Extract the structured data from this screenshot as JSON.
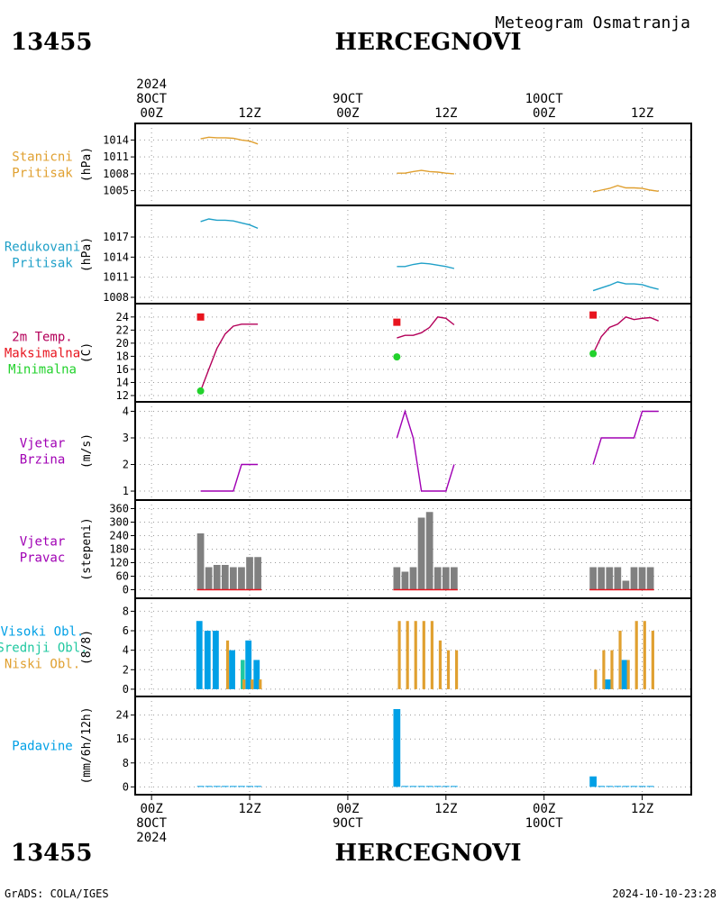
{
  "header": {
    "station_id": "13455",
    "station_name": "HERCEGNOVI",
    "product": "Meteogram Osmatranja"
  },
  "footer": {
    "credit": "GrADS: COLA/IGES",
    "timestamp": "2024-10-10-23:28"
  },
  "colors": {
    "orange": "#e0a030",
    "cyan": "#1fa0c8",
    "red": "#e8141e",
    "green": "#22d22c",
    "magenta": "#b4005a",
    "purple": "#a000b4",
    "gray": "#808080",
    "blue": "#00a0e6",
    "teal": "#20c8a0"
  },
  "time_axis": {
    "top_labels": [
      {
        "t": 0,
        "lines": [
          "2024",
          "8OCT",
          "00Z"
        ]
      },
      {
        "t": 12,
        "lines": [
          "12Z"
        ]
      },
      {
        "t": 24,
        "lines": [
          "9OCT",
          "00Z"
        ]
      },
      {
        "t": 36,
        "lines": [
          "12Z"
        ]
      },
      {
        "t": 48,
        "lines": [
          "10OCT",
          "00Z"
        ]
      },
      {
        "t": 60,
        "lines": [
          "12Z"
        ]
      }
    ],
    "bottom_labels": [
      {
        "t": 0,
        "lines": [
          "00Z",
          "8OCT",
          "2024"
        ]
      },
      {
        "t": 12,
        "lines": [
          "12Z"
        ]
      },
      {
        "t": 24,
        "lines": [
          "00Z",
          "9OCT"
        ]
      },
      {
        "t": 36,
        "lines": [
          "12Z"
        ]
      },
      {
        "t": 48,
        "lines": [
          "00Z",
          "10OCT"
        ]
      },
      {
        "t": 60,
        "lines": [
          "12Z"
        ]
      }
    ]
  },
  "chart_data": [
    {
      "type": "line",
      "panel": "station-pressure",
      "labels": [
        "Stanicni",
        "Pritisak"
      ],
      "label_colors": [
        "orange",
        "orange"
      ],
      "unit": "(hPa)",
      "ylim": [
        1003.5,
        1015.5
      ],
      "yticks": [
        1005,
        1008,
        1011,
        1014
      ],
      "grid": true,
      "series": [
        {
          "color": "orange",
          "segments": [
            [
              [
                6,
                1014.2
              ],
              [
                7,
                1014.5
              ],
              [
                8,
                1014.4
              ],
              [
                9,
                1014.4
              ],
              [
                10,
                1014.3
              ],
              [
                11,
                1014.0
              ],
              [
                12,
                1013.8
              ],
              [
                13,
                1013.3
              ]
            ],
            [
              [
                30,
                1008.1
              ],
              [
                31,
                1008.1
              ],
              [
                32,
                1008.4
              ],
              [
                33,
                1008.6
              ],
              [
                34,
                1008.4
              ],
              [
                35,
                1008.3
              ],
              [
                36,
                1008.1
              ],
              [
                37,
                1008.0
              ]
            ],
            [
              [
                54,
                1004.8
              ],
              [
                55,
                1005.1
              ],
              [
                56,
                1005.4
              ],
              [
                57,
                1005.9
              ],
              [
                58,
                1005.5
              ],
              [
                59,
                1005.5
              ],
              [
                60,
                1005.4
              ],
              [
                61,
                1005.1
              ],
              [
                62,
                1004.9
              ]
            ]
          ]
        }
      ]
    },
    {
      "type": "line",
      "panel": "reduced-pressure",
      "labels": [
        "Redukovani",
        "Pritisak"
      ],
      "label_colors": [
        "cyan",
        "cyan"
      ],
      "unit": "(hPa)",
      "ylim": [
        1008,
        1020.5
      ],
      "yticks": [
        1008,
        1011,
        1014,
        1017
      ],
      "grid": true,
      "series": [
        {
          "color": "cyan",
          "segments": [
            [
              [
                6,
                1019.3
              ],
              [
                7,
                1019.7
              ],
              [
                8,
                1019.5
              ],
              [
                9,
                1019.5
              ],
              [
                10,
                1019.4
              ],
              [
                11,
                1019.1
              ],
              [
                12,
                1018.8
              ],
              [
                13,
                1018.3
              ]
            ],
            [
              [
                30,
                1012.6
              ],
              [
                31,
                1012.6
              ],
              [
                32,
                1012.9
              ],
              [
                33,
                1013.1
              ],
              [
                34,
                1013.0
              ],
              [
                35,
                1012.8
              ],
              [
                36,
                1012.6
              ],
              [
                37,
                1012.3
              ]
            ],
            [
              [
                54,
                1009.0
              ],
              [
                55,
                1009.4
              ],
              [
                56,
                1009.8
              ],
              [
                57,
                1010.3
              ],
              [
                58,
                1010.0
              ],
              [
                59,
                1010.0
              ],
              [
                60,
                1009.9
              ],
              [
                61,
                1009.5
              ],
              [
                62,
                1009.2
              ]
            ]
          ]
        }
      ]
    },
    {
      "type": "line",
      "panel": "temperature",
      "labels": [
        "2m Temp.",
        "Maksimalna",
        "Minimalna"
      ],
      "label_colors": [
        "magenta",
        "red",
        "green"
      ],
      "unit": "(C)",
      "ylim": [
        12,
        24.8
      ],
      "yticks": [
        12,
        14,
        16,
        18,
        20,
        22,
        24
      ],
      "grid": true,
      "series": [
        {
          "color": "magenta",
          "segments": [
            [
              [
                6,
                12.7
              ],
              [
                7,
                16.0
              ],
              [
                8,
                19.2
              ],
              [
                9,
                21.4
              ],
              [
                10,
                22.6
              ],
              [
                11,
                22.9
              ],
              [
                12,
                22.9
              ],
              [
                13,
                22.9
              ]
            ],
            [
              [
                30,
                20.8
              ],
              [
                31,
                21.2
              ],
              [
                32,
                21.2
              ],
              [
                33,
                21.6
              ],
              [
                34,
                22.4
              ],
              [
                35,
                24.0
              ],
              [
                36,
                23.8
              ],
              [
                37,
                22.8
              ]
            ],
            [
              [
                54,
                18.4
              ],
              [
                55,
                21.0
              ],
              [
                56,
                22.4
              ],
              [
                57,
                22.9
              ],
              [
                58,
                24.0
              ],
              [
                59,
                23.6
              ],
              [
                60,
                23.8
              ],
              [
                61,
                23.9
              ],
              [
                62,
                23.4
              ]
            ]
          ]
        }
      ],
      "markers": [
        {
          "name": "Maksimalna",
          "color": "red",
          "shape": "square",
          "points": [
            [
              6,
              24.0
            ],
            [
              30,
              23.2
            ],
            [
              54,
              24.3
            ]
          ]
        },
        {
          "name": "Minimalna",
          "color": "green",
          "shape": "circle",
          "points": [
            [
              6,
              12.7
            ],
            [
              30,
              17.9
            ],
            [
              54,
              18.4
            ]
          ]
        }
      ]
    },
    {
      "type": "line",
      "panel": "wind-speed",
      "labels": [
        "Vjetar",
        "Brzina"
      ],
      "label_colors": [
        "purple",
        "purple"
      ],
      "unit": "(m/s)",
      "ylim": [
        0.9,
        4.05
      ],
      "yticks": [
        1,
        2,
        3,
        4
      ],
      "grid": true,
      "series": [
        {
          "color": "purple",
          "segments": [
            [
              [
                6,
                1
              ],
              [
                10,
                1
              ],
              [
                11,
                2
              ],
              [
                13,
                2
              ]
            ],
            [
              [
                30,
                3
              ],
              [
                31,
                4
              ],
              [
                32,
                3
              ],
              [
                33,
                1
              ],
              [
                36,
                1
              ],
              [
                37,
                2
              ]
            ],
            [
              [
                54,
                2
              ],
              [
                55,
                3
              ],
              [
                59,
                3
              ],
              [
                60,
                4
              ],
              [
                62,
                4
              ]
            ]
          ]
        }
      ]
    },
    {
      "type": "bar",
      "panel": "wind-direction",
      "labels": [
        "Vjetar",
        "Pravac"
      ],
      "label_colors": [
        "purple",
        "purple"
      ],
      "unit": "(stepeni)",
      "ylim": [
        -10,
        362
      ],
      "yticks": [
        0,
        60,
        120,
        180,
        240,
        300,
        360
      ],
      "grid": true,
      "bar_width_h": 0.85,
      "baseline_color": "red",
      "bars": [
        {
          "color": "gray",
          "points": [
            [
              6,
              250
            ],
            [
              7,
              100
            ],
            [
              8,
              110
            ],
            [
              9,
              110
            ],
            [
              10,
              100
            ],
            [
              11,
              100
            ],
            [
              12,
              145
            ],
            [
              13,
              145
            ],
            [
              30,
              100
            ],
            [
              31,
              80
            ],
            [
              32,
              100
            ],
            [
              33,
              320
            ],
            [
              34,
              345
            ],
            [
              35,
              100
            ],
            [
              36,
              100
            ],
            [
              37,
              100
            ],
            [
              54,
              100
            ],
            [
              55,
              100
            ],
            [
              56,
              100
            ],
            [
              57,
              100
            ],
            [
              58,
              40
            ],
            [
              59,
              100
            ],
            [
              60,
              100
            ],
            [
              61,
              100
            ]
          ]
        }
      ]
    },
    {
      "type": "bar",
      "panel": "cloud-cover",
      "labels": [
        "Visoki Obl.",
        "Srednji Obl.",
        "Niski Obl."
      ],
      "label_colors": [
        "blue",
        "teal",
        "orange"
      ],
      "unit": "(8/8)",
      "ylim": [
        -0.1,
        8.5
      ],
      "yticks": [
        0,
        2,
        4,
        6,
        8
      ],
      "grid": true,
      "bars": [
        {
          "name": "Visoki Obl.",
          "color": "blue",
          "offset": -0.15,
          "width_h": 0.75,
          "points": [
            [
              6,
              7
            ],
            [
              7,
              6
            ],
            [
              8,
              6
            ],
            [
              10,
              4
            ],
            [
              12,
              5
            ],
            [
              13,
              3
            ],
            [
              56,
              1
            ],
            [
              58,
              3
            ]
          ]
        },
        {
          "name": "Srednji Obl.",
          "color": "teal",
          "offset": 0.15,
          "width_h": 0.5,
          "points": [
            [
              11,
              3
            ]
          ]
        },
        {
          "name": "Niski Obl.",
          "color": "orange",
          "offset": 0.3,
          "width_h": 0.35,
          "points": [
            [
              9,
              5
            ],
            [
              11,
              1
            ],
            [
              12,
              1
            ],
            [
              13,
              1
            ],
            [
              30,
              7
            ],
            [
              31,
              7
            ],
            [
              32,
              7
            ],
            [
              33,
              7
            ],
            [
              34,
              7
            ],
            [
              35,
              5
            ],
            [
              36,
              4
            ],
            [
              37,
              4
            ],
            [
              54,
              2
            ],
            [
              55,
              4
            ],
            [
              56,
              4
            ],
            [
              57,
              6
            ],
            [
              58,
              3
            ],
            [
              59,
              7
            ],
            [
              60,
              7
            ],
            [
              61,
              6
            ]
          ]
        }
      ]
    },
    {
      "type": "bar",
      "panel": "precipitation",
      "labels": [
        "Padavine"
      ],
      "label_colors": [
        "blue"
      ],
      "unit": "(mm/6h/12h)",
      "ylim": [
        -0.5,
        27.5
      ],
      "yticks": [
        0,
        8,
        16,
        24
      ],
      "grid": true,
      "bars": [
        {
          "color": "blue",
          "points": [
            [
              6,
              0.3
            ],
            [
              7,
              0.3
            ],
            [
              8,
              0.3
            ],
            [
              9,
              0.3
            ],
            [
              10,
              0.3
            ],
            [
              11,
              0.3
            ],
            [
              12,
              0.3
            ],
            [
              13,
              0.3
            ],
            [
              30,
              26
            ],
            [
              31,
              0.3
            ],
            [
              32,
              0.3
            ],
            [
              33,
              0.3
            ],
            [
              34,
              0.3
            ],
            [
              35,
              0.3
            ],
            [
              36,
              0.3
            ],
            [
              37,
              0.3
            ],
            [
              54,
              3.5
            ],
            [
              55,
              0.3
            ],
            [
              56,
              0.3
            ],
            [
              57,
              0.3
            ],
            [
              58,
              0.3
            ],
            [
              59,
              0.3
            ],
            [
              60,
              0.3
            ],
            [
              61,
              0.3
            ]
          ]
        }
      ]
    }
  ]
}
